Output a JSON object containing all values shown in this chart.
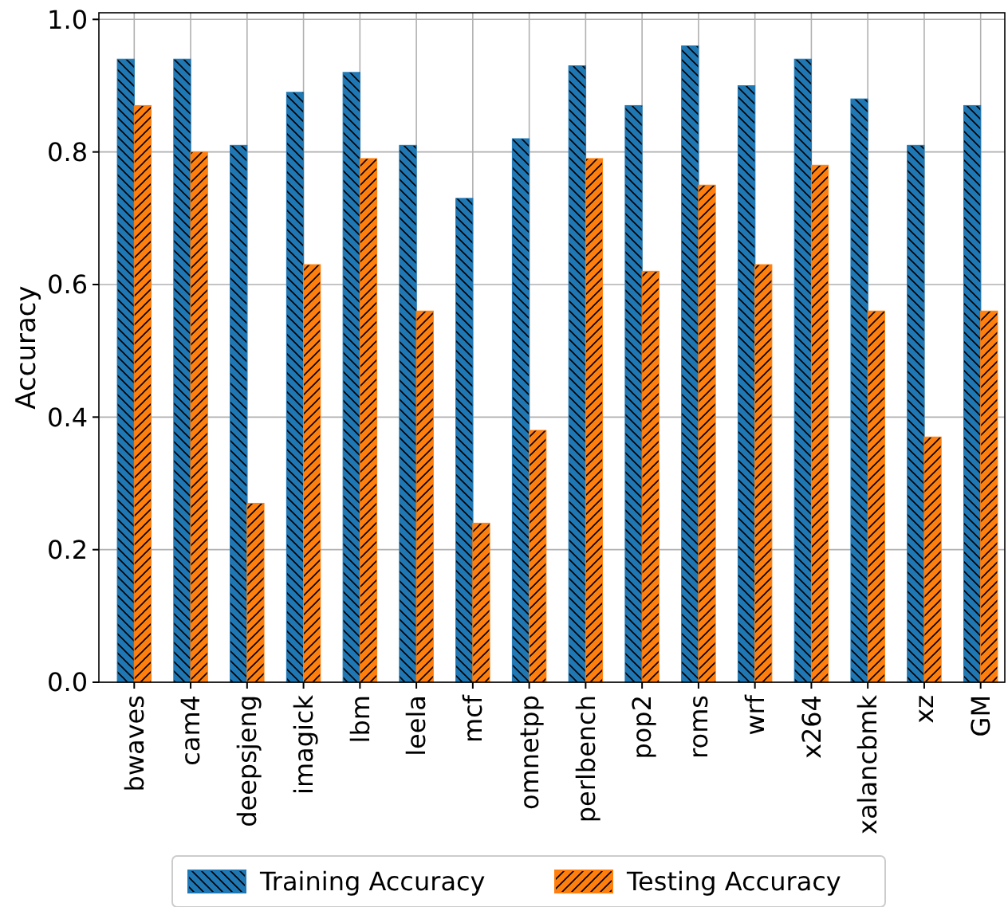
{
  "chart_data": {
    "type": "bar",
    "ylabel": "Accuracy",
    "categories": [
      "bwaves",
      "cam4",
      "deepsjeng",
      "imagick",
      "lbm",
      "leela",
      "mcf",
      "omnetpp",
      "perlbench",
      "pop2",
      "roms",
      "wrf",
      "x264",
      "xalancbmk",
      "xz",
      "GM"
    ],
    "series": [
      {
        "name": "Training Accuracy",
        "color": "#1f77b4",
        "values": [
          0.94,
          0.94,
          0.81,
          0.89,
          0.92,
          0.81,
          0.73,
          0.82,
          0.93,
          0.87,
          0.96,
          0.9,
          0.94,
          0.88,
          0.81,
          0.87
        ]
      },
      {
        "name": "Testing Accuracy",
        "color": "#ff7f0e",
        "values": [
          0.87,
          0.8,
          0.27,
          0.63,
          0.79,
          0.56,
          0.24,
          0.38,
          0.79,
          0.62,
          0.75,
          0.63,
          0.78,
          0.56,
          0.37,
          0.56
        ]
      }
    ],
    "ylim": [
      0,
      1.01
    ],
    "yticks": [
      {
        "value": 0,
        "label": "0.0"
      },
      {
        "value": 0.2,
        "label": "0.2"
      },
      {
        "value": 0.4,
        "label": "0.4"
      },
      {
        "value": 0.6,
        "label": "0.6"
      },
      {
        "value": 0.8,
        "label": "0.8"
      },
      {
        "value": 1,
        "label": "1.0"
      }
    ],
    "grid": true,
    "legend": "bottom"
  }
}
